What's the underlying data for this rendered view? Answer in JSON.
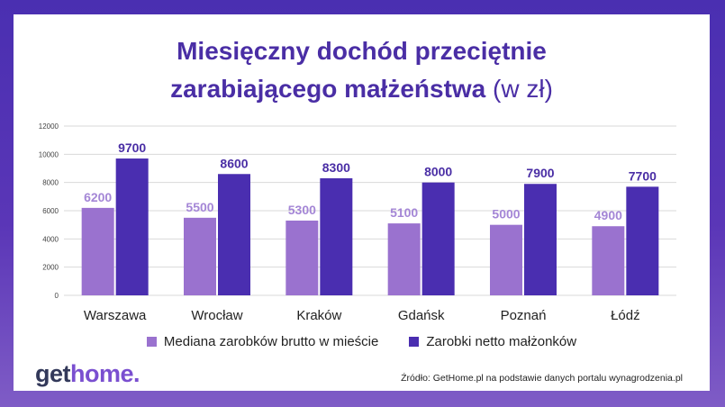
{
  "title": {
    "line1": "Miesięczny dochód przeciętnie",
    "line2_main": "zarabiającego małżeństwa",
    "line2_unit": "(w zł)"
  },
  "logo": {
    "part1": "get",
    "part2": "home."
  },
  "source": "Źródło: GetHome.pl na podstawie danych portalu wynagrodzenia.pl",
  "colors": {
    "series1": "#9a72cf",
    "series2": "#4a2eb0",
    "label1": "#a486d6",
    "label2": "#4a2ea5"
  },
  "chart_data": {
    "type": "bar",
    "title": "Miesięczny dochód przeciętnie zarabiającego małżeństwa (w zł)",
    "categories": [
      "Warszawa",
      "Wrocław",
      "Kraków",
      "Gdańsk",
      "Poznań",
      "Łódź"
    ],
    "series": [
      {
        "name": "Mediana zarobków brutto w mieście",
        "values": [
          6200,
          5500,
          5300,
          5100,
          5000,
          4900
        ]
      },
      {
        "name": "Zarobki netto małżonków",
        "values": [
          9700,
          8600,
          8300,
          8000,
          7900,
          7700
        ]
      }
    ],
    "ylim": [
      0,
      12000
    ],
    "yticks": [
      0,
      2000,
      4000,
      6000,
      8000,
      10000,
      12000
    ],
    "grid": true,
    "legend": "bottom"
  }
}
